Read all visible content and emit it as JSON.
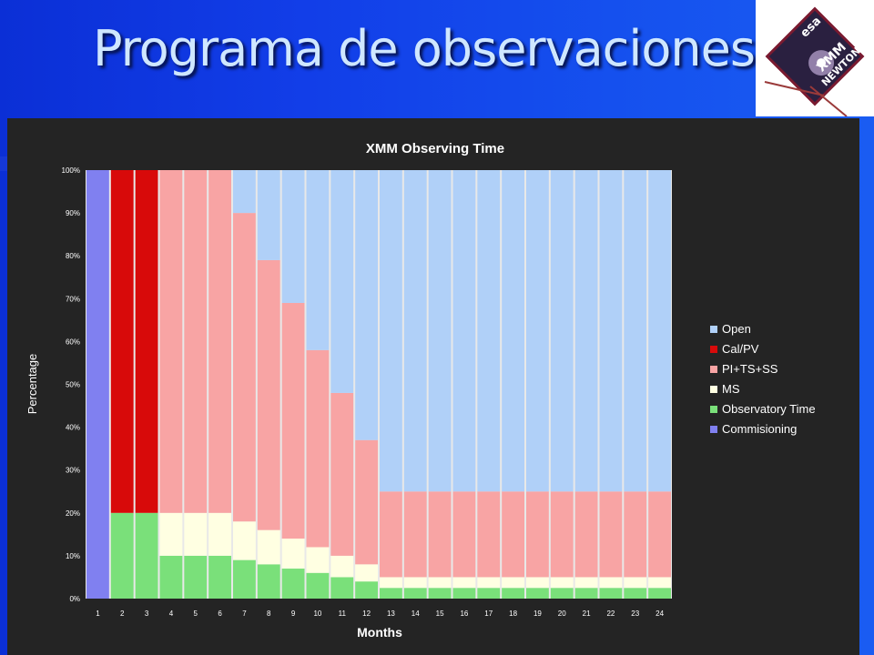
{
  "slide": {
    "title": "Programa de observaciones"
  },
  "logo": {
    "agency_text": "esa",
    "mission_line1": "XMM",
    "mission_line2": "NEWTON"
  },
  "colors": {
    "background_blue": "#1240e6",
    "title_text": "#cfe7ff",
    "panel": "#242424",
    "plot_area": "#e8e8e8"
  },
  "chart_data": {
    "type": "bar",
    "stacked": true,
    "title": "XMM Observing Time",
    "xlabel": "Months",
    "ylabel": "Percentage",
    "ylim": [
      0,
      100
    ],
    "yticks": [
      "0%",
      "10%",
      "20%",
      "30%",
      "40%",
      "50%",
      "60%",
      "70%",
      "80%",
      "90%",
      "100%"
    ],
    "categories": [
      "1",
      "2",
      "3",
      "4",
      "5",
      "6",
      "7",
      "8",
      "9",
      "10",
      "11",
      "12",
      "13",
      "14",
      "15",
      "16",
      "17",
      "18",
      "19",
      "20",
      "21",
      "22",
      "23",
      "24"
    ],
    "legend_position": "right",
    "series": [
      {
        "name": "Commisioning",
        "color": "#8080f0",
        "values": [
          100,
          0,
          0,
          0,
          0,
          0,
          0,
          0,
          0,
          0,
          0,
          0,
          0,
          0,
          0,
          0,
          0,
          0,
          0,
          0,
          0,
          0,
          0,
          0
        ]
      },
      {
        "name": "Observatory Time",
        "color": "#7ae07a",
        "values": [
          0,
          20,
          20,
          10,
          10,
          10,
          9,
          8,
          7,
          6,
          5,
          4,
          2.5,
          2.5,
          2.5,
          2.5,
          2.5,
          2.5,
          2.5,
          2.5,
          2.5,
          2.5,
          2.5,
          2.5
        ]
      },
      {
        "name": "MS",
        "color": "#ffffe2",
        "values": [
          0,
          0,
          0,
          10,
          10,
          10,
          9,
          8,
          7,
          6,
          5,
          4,
          2.5,
          2.5,
          2.5,
          2.5,
          2.5,
          2.5,
          2.5,
          2.5,
          2.5,
          2.5,
          2.5,
          2.5
        ]
      },
      {
        "name": "PI+TS+SS",
        "color": "#f8a4a4",
        "values": [
          0,
          0,
          0,
          80,
          80,
          80,
          72,
          63,
          55,
          46,
          38,
          29,
          20,
          20,
          20,
          20,
          20,
          20,
          20,
          20,
          20,
          20,
          20,
          20
        ]
      },
      {
        "name": "Cal/PV",
        "color": "#d80a0a",
        "values": [
          0,
          80,
          80,
          0,
          0,
          0,
          0,
          0,
          0,
          0,
          0,
          0,
          0,
          0,
          0,
          0,
          0,
          0,
          0,
          0,
          0,
          0,
          0,
          0
        ]
      },
      {
        "name": "Open",
        "color": "#b0d0f8",
        "values": [
          0,
          0,
          0,
          0,
          0,
          0,
          10,
          21,
          31,
          42,
          52,
          63,
          75,
          75,
          75,
          75,
          75,
          75,
          75,
          75,
          75,
          75,
          75,
          75
        ]
      }
    ],
    "legend_order": [
      "Open",
      "Cal/PV",
      "PI+TS+SS",
      "MS",
      "Observatory Time",
      "Commisioning"
    ]
  }
}
